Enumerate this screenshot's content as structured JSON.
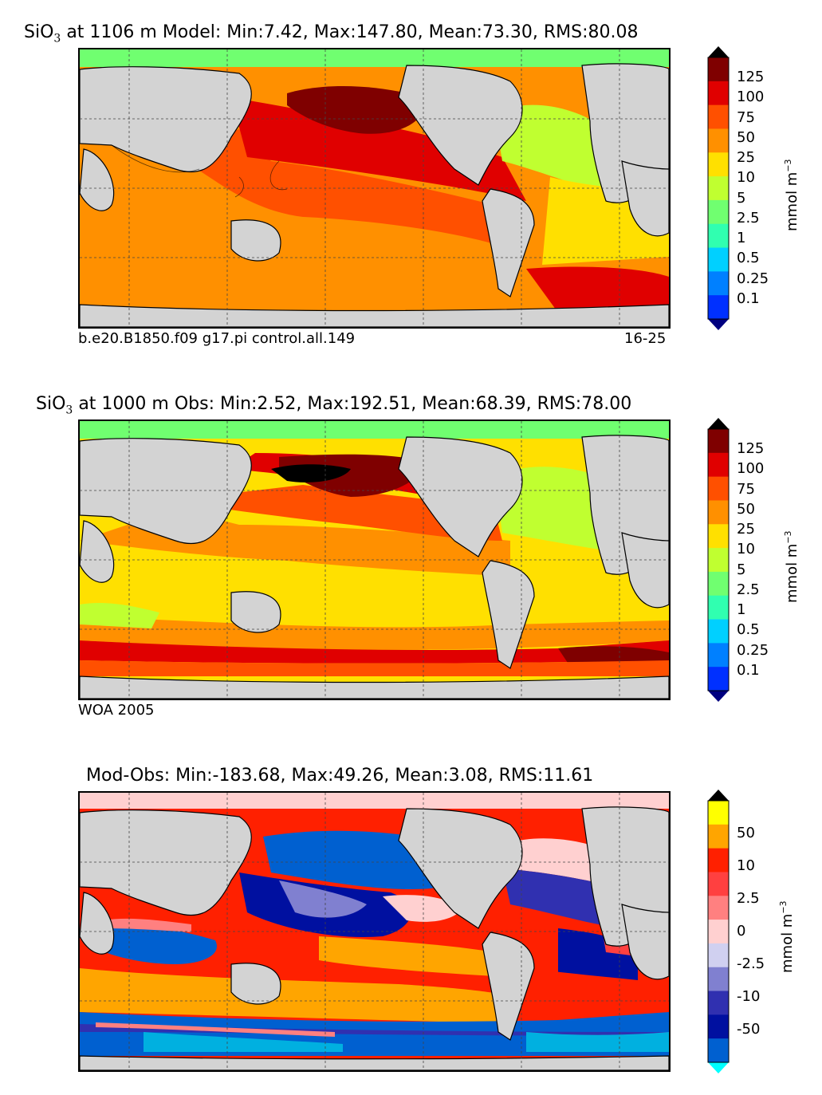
{
  "panels": [
    {
      "title_prefix": "SiO",
      "title_sub": "3",
      "title_rest": " at 1106 m Model: Min:7.42, Max:147.80, Mean:73.30, RMS:80.08",
      "caption_left": "b.e20.B1850.f09 g17.pi control.all.149",
      "caption_right": "16-25",
      "colorbar": {
        "ticks": [
          "125",
          "100",
          "75",
          "50",
          "25",
          "10",
          "5",
          "2.5",
          "1",
          "0.5",
          "0.25",
          "0.1"
        ],
        "colors": [
          "#7f0000",
          "#e00000",
          "#ff5000",
          "#ff9000",
          "#ffe000",
          "#c0ff30",
          "#70ff70",
          "#30ffb0",
          "#00d0ff",
          "#0080ff",
          "#0030ff",
          "#0000d0",
          "#000080"
        ],
        "unit": "mmol m",
        "unit_sup": "−3"
      }
    },
    {
      "title_prefix": "SiO",
      "title_sub": "3",
      "title_rest": " at 1000 m Obs: Min:2.52, Max:192.51, Mean:68.39, RMS:78.00",
      "caption_left": "WOA 2005",
      "caption_right": "",
      "colorbar": {
        "ticks": [
          "125",
          "100",
          "75",
          "50",
          "25",
          "10",
          "5",
          "2.5",
          "1",
          "0.5",
          "0.25",
          "0.1"
        ],
        "colors": [
          "#7f0000",
          "#e00000",
          "#ff5000",
          "#ff9000",
          "#ffe000",
          "#c0ff30",
          "#70ff70",
          "#30ffb0",
          "#00d0ff",
          "#0080ff",
          "#0030ff",
          "#0000d0",
          "#000080"
        ],
        "unit": "mmol m",
        "unit_sup": "−3"
      }
    },
    {
      "title_prefix": "Mod-Obs: Min:-183.68, Max:49.26, Mean:3.08, RMS:11.61",
      "title_sub": "",
      "title_rest": "",
      "caption_left": "",
      "caption_right": "",
      "colorbar": {
        "ticks": [
          "50",
          "10",
          "2.5",
          "0",
          "-2.5",
          "-10",
          "-50"
        ],
        "colors": [
          "#ffff00",
          "#ffa500",
          "#ff2000",
          "#ff4040",
          "#ff8080",
          "#ffd0d0",
          "#d0d0f0",
          "#8080d0",
          "#3030b0",
          "#0010a0",
          "#0060d0",
          "#00b0e0",
          "#00ffff"
        ],
        "unit": "mmol m",
        "unit_sup": "−3"
      }
    }
  ],
  "colors": {
    "land": "#d3d3d3",
    "no_data": "#ffffff",
    "grid": "#444444"
  }
}
